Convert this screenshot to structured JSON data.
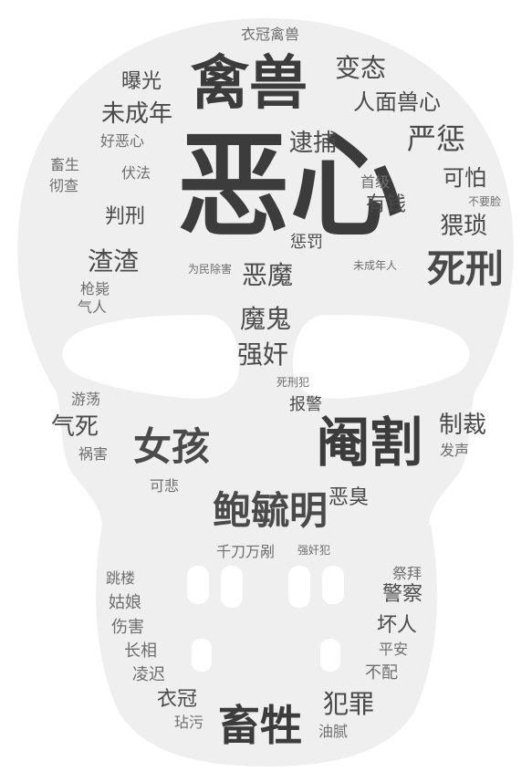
{
  "colors": {
    "background": "#ffffff",
    "skull": "#efefef",
    "text_dark": "#3c3c3c",
    "text_mid": "#4a4a4a",
    "text_light": "#6e6e6e"
  },
  "words": [
    {
      "text": "恶心"
    },
    {
      "text": "禽兽"
    },
    {
      "text": "阉割"
    },
    {
      "text": "女孩"
    },
    {
      "text": "鲍毓明"
    },
    {
      "text": "畜牲"
    },
    {
      "text": "死刑"
    },
    {
      "text": "猥琐"
    },
    {
      "text": "严惩"
    },
    {
      "text": "逮捕"
    },
    {
      "text": "变态"
    },
    {
      "text": "恶魔"
    },
    {
      "text": "魔鬼"
    },
    {
      "text": "强奸"
    },
    {
      "text": "渣渣"
    },
    {
      "text": "未成年"
    },
    {
      "text": "人面兽心"
    },
    {
      "text": "曝光"
    },
    {
      "text": "可怕"
    },
    {
      "text": "判刑"
    },
    {
      "text": "制裁"
    },
    {
      "text": "气死"
    },
    {
      "text": "犯罪"
    },
    {
      "text": "恶臭"
    },
    {
      "text": "有钱"
    },
    {
      "text": "惩罚"
    },
    {
      "text": "报警"
    },
    {
      "text": "坏人"
    },
    {
      "text": "警察"
    },
    {
      "text": "衣冠"
    },
    {
      "text": "千刀万剐"
    },
    {
      "text": "衣冠禽兽"
    },
    {
      "text": "好恶心"
    },
    {
      "text": "伏法"
    },
    {
      "text": "畜生"
    },
    {
      "text": "彻查"
    },
    {
      "text": "首级"
    },
    {
      "text": "不要脸"
    },
    {
      "text": "为民除害"
    },
    {
      "text": "未成年人"
    },
    {
      "text": "枪毙"
    },
    {
      "text": "气人"
    },
    {
      "text": "死刑犯"
    },
    {
      "text": "游荡"
    },
    {
      "text": "祸害"
    },
    {
      "text": "发声"
    },
    {
      "text": "可悲"
    },
    {
      "text": "强奸犯"
    },
    {
      "text": "跳楼"
    },
    {
      "text": "姑娘"
    },
    {
      "text": "伤害"
    },
    {
      "text": "长相"
    },
    {
      "text": "凌迟"
    },
    {
      "text": "祭拜"
    },
    {
      "text": "平安"
    },
    {
      "text": "不配"
    },
    {
      "text": "玷污"
    },
    {
      "text": "油腻"
    }
  ]
}
